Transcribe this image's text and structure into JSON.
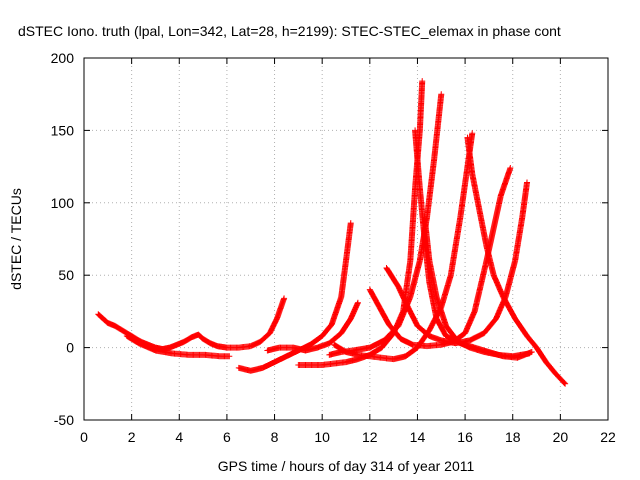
{
  "chart_data": {
    "type": "scatter",
    "title": "dSTEC Iono. truth (lpal, Lon=342, Lat=28, h=2199): STEC-STEC_elemax in phase cont",
    "xlabel": "GPS time / hours of day 314 of year 2011",
    "ylabel": "dSTEC  / TECUs",
    "xlim": [
      0,
      22
    ],
    "ylim": [
      -50,
      200
    ],
    "xticks": [
      "0",
      "2",
      "4",
      "6",
      "8",
      "10",
      "12",
      "14",
      "16",
      "18",
      "20",
      "22"
    ],
    "yticks": [
      "-50",
      "0",
      "50",
      "100",
      "150",
      "200"
    ],
    "grid": true,
    "marker": "plus",
    "series": [
      {
        "color": "#ff0000",
        "points": [
          [
            0.6,
            23
          ],
          [
            0.8,
            20
          ],
          [
            1.0,
            17
          ],
          [
            1.3,
            15
          ],
          [
            1.6,
            12
          ],
          [
            1.9,
            9
          ],
          [
            2.1,
            7
          ],
          [
            2.4,
            4
          ],
          [
            2.7,
            2
          ],
          [
            3.0,
            0
          ],
          [
            3.3,
            -1
          ],
          [
            3.6,
            0
          ],
          [
            3.9,
            2
          ],
          [
            4.2,
            4
          ],
          [
            4.5,
            7
          ],
          [
            4.8,
            9
          ],
          [
            5.0,
            6
          ],
          [
            5.3,
            3
          ],
          [
            5.6,
            1
          ],
          [
            6.0,
            0
          ],
          [
            6.5,
            0
          ],
          [
            7.0,
            1
          ],
          [
            7.4,
            4
          ],
          [
            7.8,
            10
          ],
          [
            8.1,
            20
          ],
          [
            8.4,
            34
          ]
        ]
      },
      {
        "color": "#ff0000",
        "points": [
          [
            1.8,
            8
          ],
          [
            2.3,
            3
          ],
          [
            3.0,
            -2
          ],
          [
            3.7,
            -4
          ],
          [
            4.4,
            -5
          ],
          [
            5.1,
            -5
          ],
          [
            5.7,
            -6
          ],
          [
            6.1,
            -6
          ]
        ]
      },
      {
        "color": "#ff0000",
        "points": [
          [
            6.5,
            -14
          ],
          [
            7.0,
            -16
          ],
          [
            7.5,
            -14
          ],
          [
            8.0,
            -10
          ],
          [
            8.5,
            -6
          ],
          [
            9.0,
            -2
          ],
          [
            9.5,
            2
          ],
          [
            10.0,
            8
          ],
          [
            10.4,
            16
          ],
          [
            10.8,
            35
          ],
          [
            11.0,
            60
          ],
          [
            11.2,
            86
          ]
        ]
      },
      {
        "color": "#ff0000",
        "points": [
          [
            7.7,
            -2
          ],
          [
            8.2,
            0
          ],
          [
            8.8,
            0
          ],
          [
            9.3,
            -2
          ],
          [
            9.8,
            0
          ],
          [
            10.3,
            3
          ],
          [
            10.8,
            10
          ],
          [
            11.2,
            20
          ],
          [
            11.5,
            31
          ]
        ]
      },
      {
        "color": "#ff0000",
        "points": [
          [
            9.0,
            -12
          ],
          [
            9.5,
            -12
          ],
          [
            10.0,
            -12
          ],
          [
            10.5,
            -11
          ],
          [
            11.0,
            -10
          ],
          [
            11.5,
            -8
          ],
          [
            12.0,
            -5
          ],
          [
            12.5,
            0
          ],
          [
            13.0,
            10
          ],
          [
            13.4,
            25
          ],
          [
            13.7,
            60
          ],
          [
            13.9,
            110
          ],
          [
            14.1,
            150
          ],
          [
            14.2,
            184
          ]
        ]
      },
      {
        "color": "#ff0000",
        "points": [
          [
            10.3,
            -5
          ],
          [
            10.8,
            -3
          ],
          [
            11.3,
            -2
          ],
          [
            12.0,
            0
          ],
          [
            12.6,
            5
          ],
          [
            13.2,
            15
          ],
          [
            13.7,
            35
          ],
          [
            14.1,
            60
          ],
          [
            14.4,
            90
          ],
          [
            14.7,
            130
          ],
          [
            15.0,
            175
          ]
        ]
      },
      {
        "color": "#ff0000",
        "points": [
          [
            10.5,
            2
          ],
          [
            11.0,
            -3
          ],
          [
            11.5,
            -5
          ],
          [
            12.0,
            -6
          ],
          [
            12.5,
            -7
          ],
          [
            13.0,
            -8
          ],
          [
            13.5,
            -6
          ],
          [
            14.0,
            0
          ],
          [
            14.5,
            12
          ],
          [
            15.0,
            28
          ],
          [
            15.4,
            50
          ],
          [
            15.8,
            90
          ],
          [
            16.1,
            125
          ],
          [
            16.3,
            148
          ]
        ]
      },
      {
        "color": "#ff0000",
        "points": [
          [
            12.0,
            40
          ],
          [
            12.4,
            28
          ],
          [
            12.8,
            16
          ],
          [
            13.3,
            6
          ],
          [
            13.8,
            2
          ],
          [
            14.4,
            1
          ],
          [
            15.0,
            2
          ],
          [
            15.5,
            4
          ],
          [
            16.0,
            10
          ],
          [
            16.4,
            25
          ],
          [
            16.9,
            60
          ],
          [
            17.3,
            90
          ],
          [
            17.5,
            105
          ],
          [
            17.9,
            124
          ]
        ]
      },
      {
        "color": "#ff0000",
        "points": [
          [
            12.7,
            55
          ],
          [
            13.2,
            42
          ],
          [
            13.6,
            28
          ],
          [
            14.0,
            15
          ],
          [
            14.5,
            8
          ],
          [
            15.0,
            5
          ],
          [
            15.6,
            3
          ],
          [
            16.2,
            5
          ],
          [
            16.8,
            10
          ],
          [
            17.3,
            20
          ],
          [
            17.7,
            35
          ],
          [
            18.1,
            60
          ],
          [
            18.4,
            90
          ],
          [
            18.6,
            114
          ]
        ]
      },
      {
        "color": "#ff0000",
        "points": [
          [
            13.9,
            150
          ],
          [
            14.1,
            110
          ],
          [
            14.3,
            75
          ],
          [
            14.5,
            45
          ],
          [
            14.8,
            20
          ],
          [
            15.2,
            8
          ],
          [
            15.8,
            3
          ],
          [
            16.4,
            0
          ],
          [
            17.0,
            -3
          ],
          [
            17.6,
            -6
          ],
          [
            18.2,
            -7
          ],
          [
            18.8,
            -3
          ]
        ]
      },
      {
        "color": "#ff0000",
        "points": [
          [
            14.3,
            90
          ],
          [
            14.5,
            60
          ],
          [
            14.8,
            35
          ],
          [
            15.2,
            15
          ],
          [
            15.7,
            4
          ],
          [
            16.2,
            0
          ],
          [
            16.8,
            -3
          ],
          [
            17.4,
            -5
          ],
          [
            18.0,
            -6
          ],
          [
            18.7,
            -4
          ]
        ]
      },
      {
        "color": "#ff0000",
        "points": [
          [
            16.1,
            145
          ],
          [
            16.3,
            120
          ],
          [
            16.6,
            95
          ],
          [
            16.9,
            70
          ],
          [
            17.2,
            50
          ],
          [
            17.6,
            35
          ],
          [
            18.1,
            20
          ],
          [
            18.6,
            8
          ],
          [
            19.0,
            0
          ],
          [
            19.4,
            -10
          ],
          [
            19.8,
            -18
          ],
          [
            20.2,
            -25
          ]
        ]
      }
    ]
  }
}
